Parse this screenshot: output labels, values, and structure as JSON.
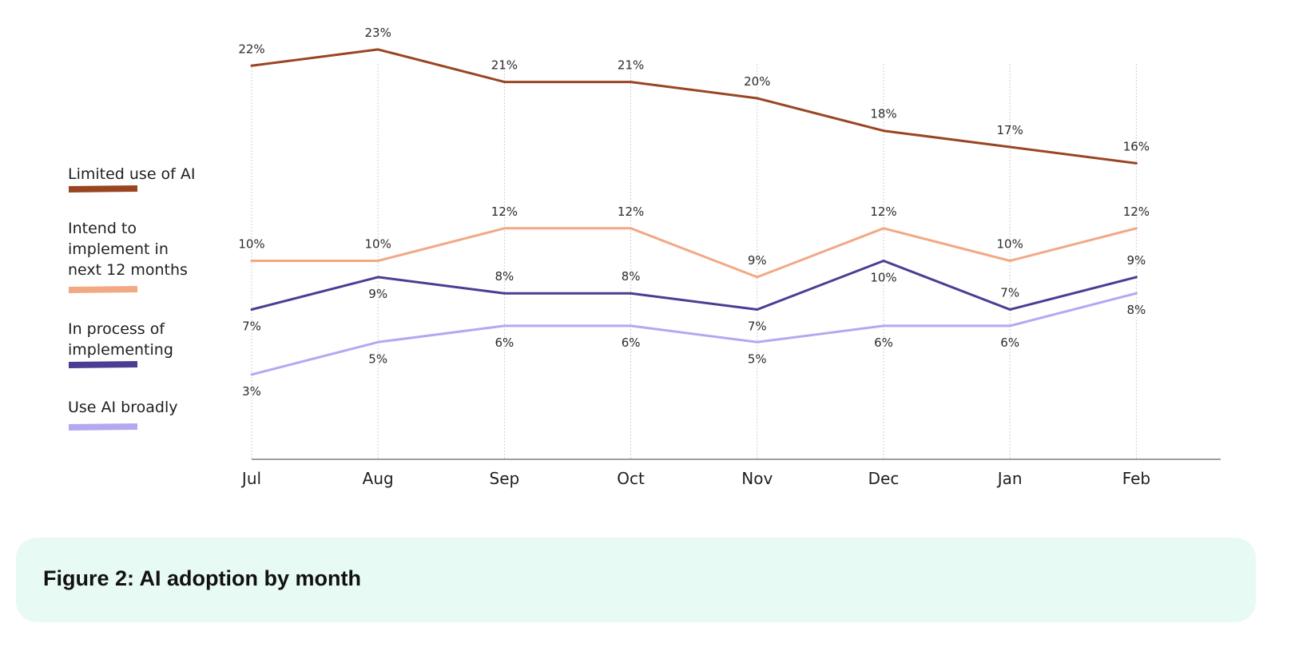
{
  "chart_data": {
    "type": "line",
    "title": "",
    "xlabel": "",
    "ylabel": "",
    "categories": [
      "Jul",
      "Aug",
      "Sep",
      "Oct",
      "Nov",
      "Dec",
      "Jan",
      "Feb"
    ],
    "series": [
      {
        "name": "Limited use of AI",
        "color": "#9a4522",
        "values": [
          22,
          23,
          21,
          21,
          20,
          18,
          17,
          16
        ],
        "labels": [
          "22%",
          "23%",
          "21%",
          "21%",
          "20%",
          "18%",
          "17%",
          "16%"
        ],
        "label_position": [
          "above",
          "above",
          "above",
          "above",
          "above",
          "above",
          "above",
          "above"
        ]
      },
      {
        "name": "Intend to implement in next 12 months",
        "legend_lines": [
          "Intend to",
          "implement in",
          "next 12 months"
        ],
        "color": "#f2a883",
        "values": [
          10,
          10,
          12,
          12,
          9,
          12,
          10,
          12
        ],
        "labels": [
          "10%",
          "10%",
          "12%",
          "12%",
          "9%",
          "12%",
          "10%",
          "12%"
        ],
        "label_position": [
          "above",
          "above",
          "above",
          "above",
          "above",
          "above",
          "above",
          "above"
        ]
      },
      {
        "name": "In process of implementing",
        "legend_lines": [
          "In process of",
          "implementing"
        ],
        "color": "#4c3c93",
        "values": [
          7,
          9,
          8,
          8,
          7,
          10,
          7,
          9
        ],
        "labels": [
          "7%",
          "9%",
          "8%",
          "8%",
          "7%",
          "10%",
          "7%",
          "9%"
        ],
        "label_position": [
          "below",
          "below",
          "above",
          "above",
          "below",
          "below",
          "above",
          "above"
        ]
      },
      {
        "name": "Use AI broadly",
        "color": "#b3a9f1",
        "values": [
          3,
          5,
          6,
          6,
          5,
          6,
          6,
          8
        ],
        "labels": [
          "3%",
          "5%",
          "6%",
          "6%",
          "5%",
          "6%",
          "6%",
          "8%"
        ],
        "label_position": [
          "below",
          "below",
          "below",
          "below",
          "below",
          "below",
          "below",
          "below"
        ]
      }
    ],
    "grid": "vertical dotted",
    "legend": "left"
  },
  "caption": "Figure 2: AI adoption by month"
}
